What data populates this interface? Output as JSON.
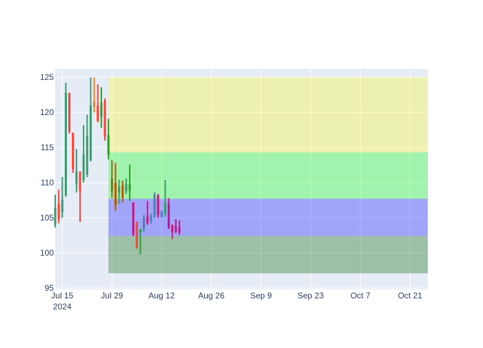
{
  "chart_data": {
    "type": "candlestick",
    "x_axis": {
      "range": [
        "2024-07-13",
        "2024-10-26"
      ],
      "ticks": [
        {
          "date": "2024-07-15",
          "label": "Jul 15",
          "sublabel": "2024"
        },
        {
          "date": "2024-07-29",
          "label": "Jul 29"
        },
        {
          "date": "2024-08-12",
          "label": "Aug 12"
        },
        {
          "date": "2024-08-26",
          "label": "Aug 26"
        },
        {
          "date": "2024-09-09",
          "label": "Sep 9"
        },
        {
          "date": "2024-09-23",
          "label": "Sep 23"
        },
        {
          "date": "2024-10-07",
          "label": "Oct 7"
        },
        {
          "date": "2024-10-21",
          "label": "Oct 21"
        }
      ]
    },
    "y_axis": {
      "range": [
        94.8,
        126.2
      ],
      "ticks": [
        95,
        100,
        105,
        110,
        115,
        120,
        125
      ]
    },
    "grid": true,
    "zones": [
      {
        "x_start": "2024-07-28",
        "x_end": "2024-10-26",
        "y_low": 114.3,
        "y_high": 125,
        "color": "#ffff00",
        "opacity": 0.28
      },
      {
        "x_start": "2024-07-28",
        "x_end": "2024-10-26",
        "y_low": 107.7,
        "y_high": 114.3,
        "color": "#00ff00",
        "opacity": 0.3
      },
      {
        "x_start": "2024-07-28",
        "x_end": "2024-10-26",
        "y_low": 102.4,
        "y_high": 107.7,
        "color": "#0000ff",
        "opacity": 0.3
      },
      {
        "x_start": "2024-07-28",
        "x_end": "2024-10-26",
        "y_low": 97.1,
        "y_high": 102.4,
        "color": "#006400",
        "opacity": 0.32
      }
    ],
    "candles": [
      {
        "date": "2024-07-13",
        "open": 104.0,
        "high": 108.3,
        "low": 103.6,
        "close": 106.4,
        "color": "#3d9970"
      },
      {
        "date": "2024-07-14",
        "open": 107.0,
        "high": 109.0,
        "low": 104.2,
        "close": 104.8,
        "color": "#ff4136"
      },
      {
        "date": "2024-07-15",
        "open": 105.8,
        "high": 110.8,
        "low": 105.0,
        "close": 107.6,
        "color": "#3d9970"
      },
      {
        "date": "2024-07-16",
        "open": 108.2,
        "high": 124.2,
        "low": 108.0,
        "close": 122.8,
        "color": "#3d9970"
      },
      {
        "date": "2024-07-17",
        "open": 122.8,
        "high": 122.8,
        "low": 117.0,
        "close": 117.3,
        "color": "#ff4136"
      },
      {
        "date": "2024-07-18",
        "open": 117.1,
        "high": 117.1,
        "low": 111.4,
        "close": 111.9,
        "color": "#ff4136"
      },
      {
        "date": "2024-07-19",
        "open": 109.8,
        "high": 114.8,
        "low": 108.6,
        "close": 111.6,
        "color": "#3d9970"
      },
      {
        "date": "2024-07-20",
        "open": 111.6,
        "high": 111.6,
        "low": 104.4,
        "close": 108.8,
        "color": "#ff4136"
      },
      {
        "date": "2024-07-21",
        "open": 110.4,
        "high": 118.2,
        "low": 110.0,
        "close": 114.0,
        "color": "#3d9970"
      },
      {
        "date": "2024-07-22",
        "open": 111.2,
        "high": 119.7,
        "low": 110.8,
        "close": 116.6,
        "color": "#3d9970"
      },
      {
        "date": "2024-07-23",
        "open": 113.2,
        "high": 125.0,
        "low": 113.0,
        "close": 121.0,
        "color": "#3d9970"
      },
      {
        "date": "2024-07-24",
        "open": 121.6,
        "high": 125.0,
        "low": 120.0,
        "close": 120.8,
        "color": "#ff7f0e"
      },
      {
        "date": "2024-07-25",
        "open": 121.0,
        "high": 124.0,
        "low": 118.6,
        "close": 118.8,
        "color": "#ff4136"
      },
      {
        "date": "2024-07-26",
        "open": 119.4,
        "high": 123.6,
        "low": 117.8,
        "close": 121.4,
        "color": "#2ca02c"
      },
      {
        "date": "2024-07-27",
        "open": 121.6,
        "high": 122.0,
        "low": 116.0,
        "close": 116.6,
        "color": "#ff4136"
      },
      {
        "date": "2024-07-28",
        "open": 114.0,
        "high": 119.1,
        "low": 113.3,
        "close": 116.8,
        "color": "#2ca02c"
      },
      {
        "date": "2024-07-29",
        "open": 110.6,
        "high": 113.2,
        "low": 107.8,
        "close": 108.8,
        "color": "#8c6d1f"
      },
      {
        "date": "2024-07-30",
        "open": 110.0,
        "high": 112.8,
        "low": 106.0,
        "close": 106.8,
        "color": "#b35a00"
      },
      {
        "date": "2024-07-31",
        "open": 108.6,
        "high": 110.4,
        "low": 107.0,
        "close": 109.4,
        "color": "#3d9970"
      },
      {
        "date": "2024-08-01",
        "open": 109.6,
        "high": 110.3,
        "low": 107.2,
        "close": 107.8,
        "color": "#b35a00"
      },
      {
        "date": "2024-08-02",
        "open": 108.8,
        "high": 110.6,
        "low": 108.4,
        "close": 109.8,
        "color": "#3d9970"
      },
      {
        "date": "2024-08-03",
        "open": 108.8,
        "high": 112.6,
        "low": 107.4,
        "close": 109.8,
        "color": "#2ca02c"
      },
      {
        "date": "2024-08-04",
        "open": 107.2,
        "high": 107.2,
        "low": 102.4,
        "close": 102.6,
        "color": "#c71585"
      },
      {
        "date": "2024-08-05",
        "open": 104.4,
        "high": 104.4,
        "low": 100.6,
        "close": 100.8,
        "color": "#ff4136"
      },
      {
        "date": "2024-08-06",
        "open": 103.0,
        "high": 103.2,
        "low": 99.8,
        "close": 103.4,
        "color": "#2ca02c"
      },
      {
        "date": "2024-08-07",
        "open": 103.4,
        "high": 105.4,
        "low": 103.0,
        "close": 105.0,
        "color": "#4682b4"
      },
      {
        "date": "2024-08-08",
        "open": 105.2,
        "high": 107.4,
        "low": 104.0,
        "close": 104.2,
        "color": "#c71585"
      },
      {
        "date": "2024-08-09",
        "open": 104.6,
        "high": 105.6,
        "low": 104.2,
        "close": 105.2,
        "color": "#4682b4"
      },
      {
        "date": "2024-08-10",
        "open": 105.2,
        "high": 108.6,
        "low": 105.0,
        "close": 108.2,
        "color": "#4682b4"
      },
      {
        "date": "2024-08-11",
        "open": 108.2,
        "high": 108.4,
        "low": 105.0,
        "close": 105.4,
        "color": "#c71585"
      },
      {
        "date": "2024-08-12",
        "open": 105.2,
        "high": 106.0,
        "low": 105.0,
        "close": 105.8,
        "color": "#4682b4"
      },
      {
        "date": "2024-08-13",
        "open": 105.6,
        "high": 110.4,
        "low": 105.2,
        "close": 107.2,
        "color": "#3d9970"
      },
      {
        "date": "2024-08-14",
        "open": 107.0,
        "high": 107.8,
        "low": 103.4,
        "close": 103.6,
        "color": "#c71585"
      },
      {
        "date": "2024-08-15",
        "open": 104.0,
        "high": 104.0,
        "low": 102.0,
        "close": 103.0,
        "color": "#c71585"
      },
      {
        "date": "2024-08-16",
        "open": 103.8,
        "high": 104.8,
        "low": 102.8,
        "close": 103.0,
        "color": "#c71585"
      },
      {
        "date": "2024-08-17",
        "open": 103.6,
        "high": 104.6,
        "low": 102.6,
        "close": 102.9,
        "color": "#c71585"
      }
    ]
  }
}
